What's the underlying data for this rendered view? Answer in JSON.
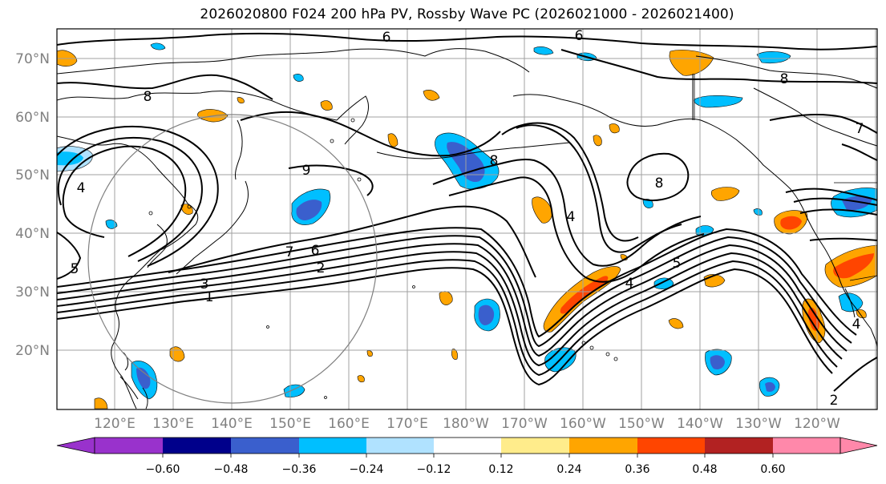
{
  "title": "2026020800 F024 200 hPa PV, Rossby Wave PC (2026021000 - 2026021400)",
  "map": {
    "projection": "PlateCarree",
    "lat_labels": [
      "70°N",
      "60°N",
      "50°N",
      "40°N",
      "30°N",
      "20°N"
    ],
    "lat_values": [
      70,
      60,
      50,
      40,
      30,
      20
    ],
    "lon_labels": [
      "120°E",
      "130°E",
      "140°E",
      "150°E",
      "160°E",
      "170°E",
      "180°W",
      "170°W",
      "160°W",
      "150°W",
      "140°W",
      "130°W",
      "120°W"
    ],
    "lon_values": [
      120,
      130,
      140,
      150,
      160,
      170,
      180,
      190,
      200,
      210,
      220,
      230,
      240
    ],
    "contour_labels": [
      "1",
      "2",
      "3",
      "4",
      "5",
      "6",
      "7",
      "8",
      "9"
    ]
  },
  "colorbar": {
    "ticks": [
      "−0.60",
      "−0.48",
      "−0.36",
      "−0.24",
      "−0.12",
      "0.12",
      "0.24",
      "0.36",
      "0.48",
      "0.60"
    ],
    "colors": [
      "#9932cc",
      "#00008b",
      "#3a5fcd",
      "#00bfff",
      "#b0e2ff",
      "#ffffff",
      "#ffec8b",
      "#ffa500",
      "#ff4500",
      "#b22222",
      "#ff88aa"
    ]
  },
  "anomaly_colors": {
    "neg_strong": "#3a5fcd",
    "neg_mid": "#00bfff",
    "neg_weak": "#b0e2ff",
    "pos_weak": "#ffec8b",
    "pos_mid": "#ffa500",
    "pos_strong": "#ff4500"
  }
}
